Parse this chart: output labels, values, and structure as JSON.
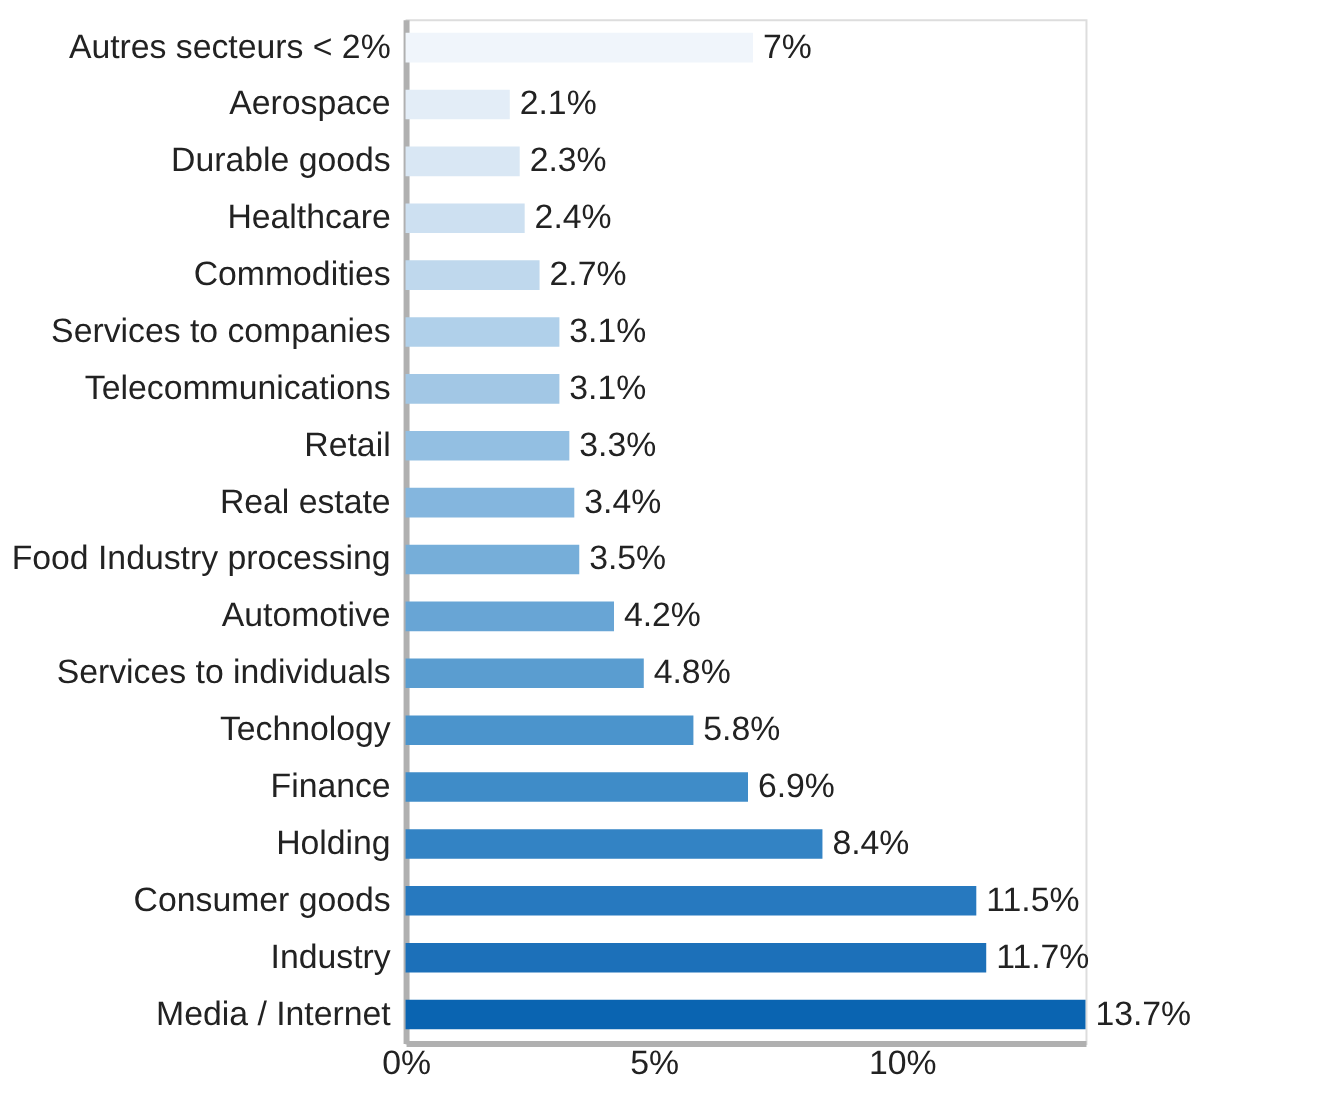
{
  "chart_data": {
    "type": "bar",
    "orientation": "horizontal",
    "categories": [
      "Autres secteurs < 2%",
      "Aerospace",
      "Durable goods",
      "Healthcare",
      "Commodities",
      "Services to companies",
      "Telecommunications",
      "Retail",
      "Real estate",
      "Food Industry processing",
      "Automotive",
      "Services to individuals",
      "Technology",
      "Finance",
      "Holding",
      "Consumer goods",
      "Industry",
      "Media / Internet"
    ],
    "values": [
      7,
      2.1,
      2.3,
      2.4,
      2.7,
      3.1,
      3.1,
      3.3,
      3.4,
      3.5,
      4.2,
      4.8,
      5.8,
      6.9,
      8.4,
      11.5,
      11.7,
      13.7
    ],
    "value_labels": [
      "7%",
      "2.1%",
      "2.3%",
      "2.4%",
      "2.7%",
      "3.1%",
      "3.1%",
      "3.3%",
      "3.4%",
      "3.5%",
      "4.2%",
      "4.8%",
      "5.8%",
      "6.9%",
      "8.4%",
      "11.5%",
      "11.7%",
      "13.7%"
    ],
    "colors": [
      "#f0f5fb",
      "#e3edf7",
      "#d9e7f4",
      "#cde0f1",
      "#bfd8ed",
      "#b0d0ea",
      "#a2c7e5",
      "#93bfe2",
      "#84b6de",
      "#76aed9",
      "#68a5d5",
      "#5a9dd0",
      "#4b94cc",
      "#3f8cc8",
      "#3383c4",
      "#2779bf",
      "#1c70b9",
      "#0a64b1"
    ],
    "xlim": [
      0,
      13.7
    ],
    "xticks": [
      {
        "value": 0,
        "label": "0%"
      },
      {
        "value": 5,
        "label": "5%"
      },
      {
        "value": 10,
        "label": "10%"
      }
    ],
    "grid": false,
    "legend": false
  }
}
